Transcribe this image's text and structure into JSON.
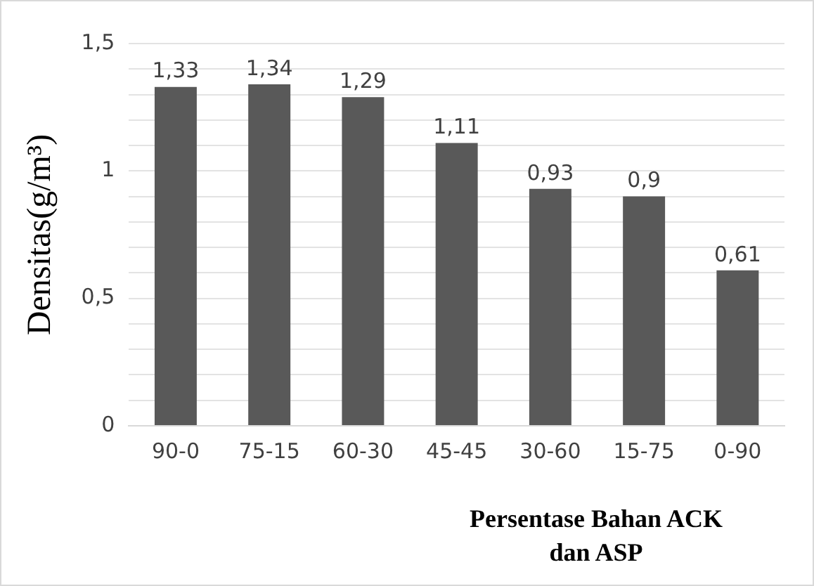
{
  "chart_data": {
    "type": "bar",
    "ylabel": "Densitas(g/m³)",
    "xlabel": "Persentase Bahan ACK dan ASP",
    "categories": [
      "90-0",
      "75-15",
      "60-30",
      "45-45",
      "30-60",
      "15-75",
      "0-90"
    ],
    "values": [
      1.33,
      1.34,
      1.29,
      1.11,
      0.93,
      0.9,
      0.61
    ],
    "value_labels": [
      "1,33",
      "1,34",
      "1,29",
      "1,11",
      "0,93",
      "0,9",
      "0,61"
    ],
    "color": "#595959",
    "ylim": [
      0,
      1.5
    ],
    "yticks": [
      {
        "value": 0,
        "label": "0"
      },
      {
        "value": 0.1,
        "label": null
      },
      {
        "value": 0.2,
        "label": null
      },
      {
        "value": 0.3,
        "label": null
      },
      {
        "value": 0.4,
        "label": null
      },
      {
        "value": 0.5,
        "label": "0,5"
      },
      {
        "value": 0.6,
        "label": null
      },
      {
        "value": 0.7,
        "label": null
      },
      {
        "value": 0.8,
        "label": null
      },
      {
        "value": 0.9,
        "label": null
      },
      {
        "value": 1,
        "label": "1"
      },
      {
        "value": 1.1,
        "label": null
      },
      {
        "value": 1.2,
        "label": null
      },
      {
        "value": 1.3,
        "label": null
      },
      {
        "value": 1.4,
        "label": null
      },
      {
        "value": 1.5,
        "label": "1,5"
      }
    ],
    "grid": "y",
    "legend": false
  }
}
